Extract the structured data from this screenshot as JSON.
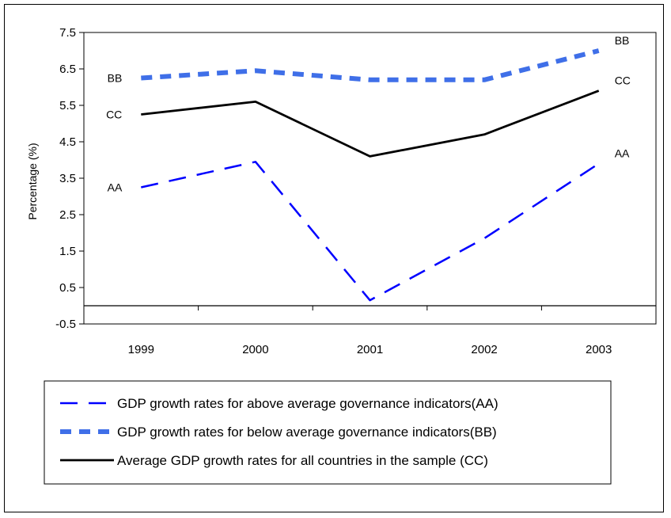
{
  "chart_data": {
    "type": "line",
    "title": "",
    "xlabel": "",
    "ylabel": "Percentage (%)",
    "categories": [
      "1999",
      "2000",
      "2001",
      "2002",
      "2003"
    ],
    "ylim": [
      -0.5,
      7.5
    ],
    "yticks": [
      "7.5",
      "6.5",
      "5.5",
      "4.5",
      "3.5",
      "2.5",
      "1.5",
      "0.5",
      "-0.5"
    ],
    "grid": false,
    "legend_position": "bottom",
    "series": [
      {
        "name": "GDP growth rates for above average governance indicators(AA)",
        "short": "AA",
        "values": [
          3.25,
          3.95,
          0.15,
          1.85,
          3.9
        ],
        "color": "#0000ff",
        "style": "long-dash"
      },
      {
        "name": "GDP growth rates for below average governance indicators(BB)",
        "short": "BB",
        "values": [
          6.25,
          6.45,
          6.2,
          6.2,
          7.0
        ],
        "color": "#3f6fe8",
        "style": "thick-dash"
      },
      {
        "name": "Average GDP growth rates for all  countries in the sample (CC)",
        "short": "CC",
        "values": [
          5.25,
          5.6,
          4.1,
          4.7,
          5.9
        ],
        "color": "#000000",
        "style": "solid"
      }
    ]
  }
}
